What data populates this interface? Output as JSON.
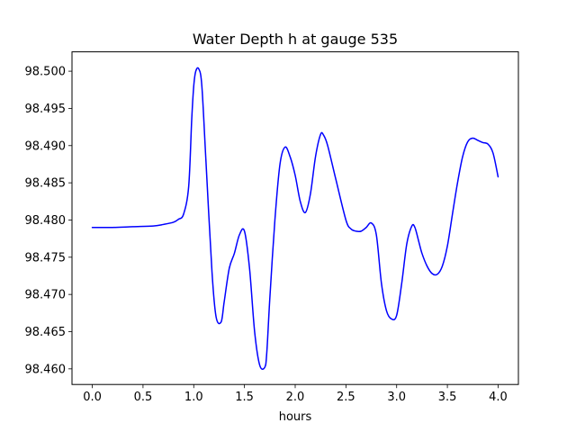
{
  "chart_data": {
    "type": "line",
    "title": "Water Depth h at gauge 535",
    "xlabel": "hours",
    "ylabel": "",
    "xlim": [
      -0.2,
      4.2
    ],
    "ylim": [
      98.4579,
      98.5026
    ],
    "xticks": [
      0.0,
      0.5,
      1.0,
      1.5,
      2.0,
      2.5,
      3.0,
      3.5,
      4.0
    ],
    "xtick_labels": [
      "0.0",
      "0.5",
      "1.0",
      "1.5",
      "2.0",
      "2.5",
      "3.0",
      "3.5",
      "4.0"
    ],
    "yticks": [
      98.46,
      98.465,
      98.47,
      98.475,
      98.48,
      98.485,
      98.49,
      98.495,
      98.5
    ],
    "ytick_labels": [
      "98.460",
      "98.465",
      "98.470",
      "98.475",
      "98.480",
      "98.485",
      "98.490",
      "98.495",
      "98.500"
    ],
    "grid": false,
    "line_color": "#0000ff",
    "series": [
      {
        "x": [
          0.0,
          0.2,
          0.4,
          0.6,
          0.7,
          0.8,
          0.85,
          0.9,
          0.95,
          0.98,
          1.0,
          1.02,
          1.05,
          1.08,
          1.12,
          1.18,
          1.22,
          1.27,
          1.3,
          1.35,
          1.4,
          1.45,
          1.5,
          1.55,
          1.6,
          1.65,
          1.7,
          1.72,
          1.75,
          1.8,
          1.85,
          1.9,
          1.95,
          2.0,
          2.05,
          2.1,
          2.15,
          2.2,
          2.25,
          2.28,
          2.32,
          2.4,
          2.5,
          2.55,
          2.6,
          2.65,
          2.7,
          2.75,
          2.8,
          2.85,
          2.9,
          2.95,
          3.0,
          3.05,
          3.1,
          3.15,
          3.18,
          3.22,
          3.25,
          3.3,
          3.35,
          3.4,
          3.45,
          3.5,
          3.55,
          3.6,
          3.65,
          3.7,
          3.75,
          3.8,
          3.85,
          3.9,
          3.95,
          4.0
        ],
        "y": [
          98.479,
          98.479,
          98.4791,
          98.4792,
          98.4794,
          98.4797,
          98.4801,
          98.4808,
          98.4845,
          98.4935,
          98.498,
          98.5,
          98.5003,
          98.498,
          98.488,
          98.473,
          98.467,
          98.4663,
          98.469,
          98.4735,
          98.4755,
          98.478,
          98.4785,
          98.4735,
          98.465,
          98.4605,
          98.4602,
          98.4622,
          98.4695,
          98.48,
          98.4875,
          98.4898,
          98.4885,
          98.486,
          98.4825,
          98.481,
          98.4835,
          98.4885,
          98.4915,
          98.4914,
          98.49,
          98.4855,
          98.48,
          98.4788,
          98.4785,
          98.4785,
          98.479,
          98.4796,
          98.478,
          98.4715,
          98.4678,
          98.4667,
          98.4672,
          98.4715,
          98.4768,
          98.4792,
          98.479,
          98.477,
          98.4755,
          98.4738,
          98.4728,
          98.4727,
          98.4738,
          98.4765,
          98.4808,
          98.485,
          98.4885,
          98.4905,
          98.491,
          98.4907,
          98.4904,
          98.4902,
          98.489,
          98.4858
        ]
      }
    ]
  }
}
